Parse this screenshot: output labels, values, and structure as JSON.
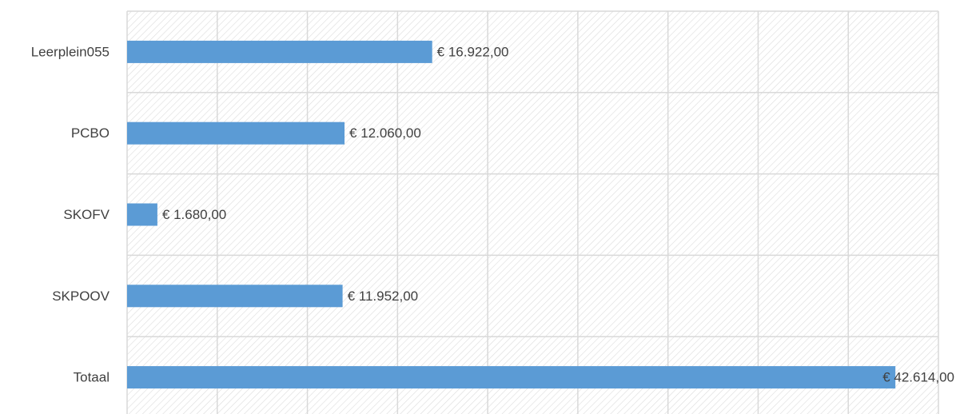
{
  "chart_data": {
    "type": "hbar",
    "categories": [
      "Leerplein055",
      "PCBO",
      "SKOFV",
      "SKPOOV",
      "Totaal"
    ],
    "values": [
      16922,
      12060,
      1680,
      11952,
      42614
    ],
    "value_labels": [
      "€ 16.922,00",
      "€ 12.060,00",
      "€ 1.680,00",
      "€ 11.952,00",
      "€ 42.614,00"
    ],
    "color": "#5b9bd5",
    "xlim": [
      0,
      45000
    ],
    "xticks": [
      0,
      5000,
      10000,
      15000,
      20000,
      25000,
      30000,
      35000,
      40000,
      45000
    ],
    "grid": true
  }
}
